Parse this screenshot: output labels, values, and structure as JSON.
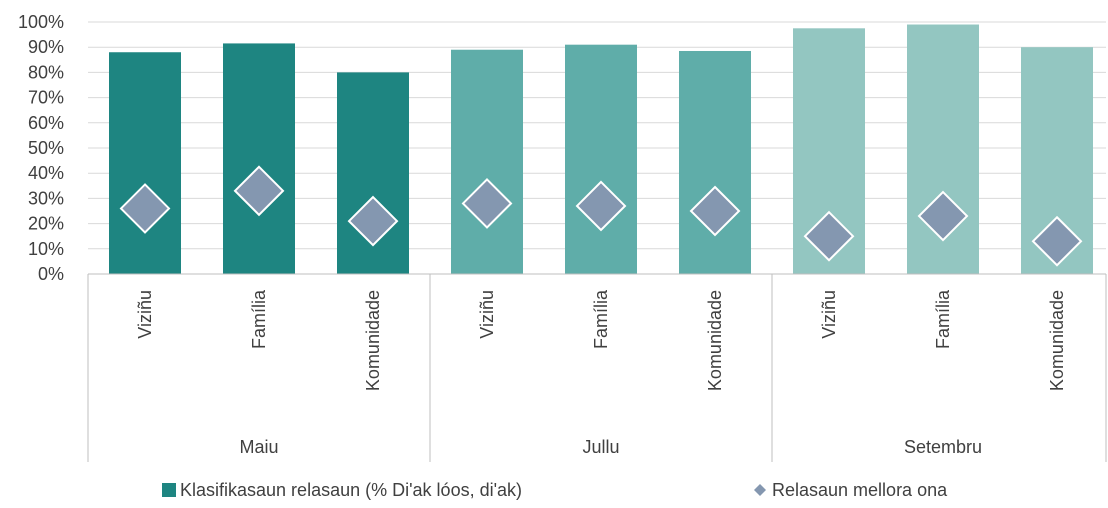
{
  "chart_data": {
    "type": "bar",
    "ylim": [
      0,
      1
    ],
    "y_ticks": [
      "0%",
      "10%",
      "20%",
      "30%",
      "40%",
      "50%",
      "60%",
      "70%",
      "80%",
      "90%",
      "100%"
    ],
    "grid": true,
    "groups": [
      {
        "name": "Maiu",
        "color": "#1E8581",
        "categories": [
          "Viziñu",
          "Família",
          "Komunidade"
        ]
      },
      {
        "name": "Jullu",
        "color": "#5FADA9",
        "categories": [
          "Viziñu",
          "Família",
          "Komunidade"
        ]
      },
      {
        "name": "Setembru",
        "color": "#93C6C1",
        "categories": [
          "Viziñu",
          "Família",
          "Komunidade"
        ]
      }
    ],
    "series": [
      {
        "name": "Klasifikasaun relasaun (% Di'ak lóos, di'ak)",
        "kind": "bar",
        "values": [
          0.88,
          0.915,
          0.8,
          0.89,
          0.91,
          0.885,
          0.975,
          0.99,
          0.9
        ]
      },
      {
        "name": "Relasaun mellora ona",
        "kind": "marker",
        "color": "#8497B0",
        "values": [
          0.26,
          0.33,
          0.21,
          0.28,
          0.27,
          0.25,
          0.15,
          0.23,
          0.13
        ]
      }
    ],
    "legend_position": "bottom"
  }
}
